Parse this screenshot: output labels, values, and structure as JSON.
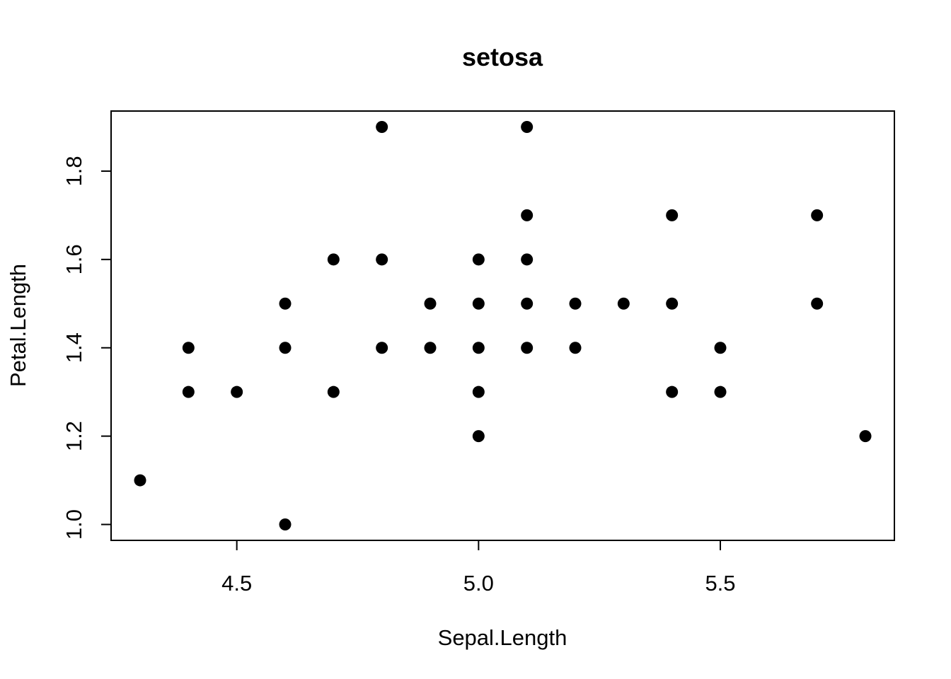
{
  "chart_data": {
    "type": "scatter",
    "title": "setosa",
    "xlabel": "Sepal.Length",
    "ylabel": "Petal.Length",
    "xlim": [
      4.24,
      5.86
    ],
    "ylim": [
      0.964,
      1.936
    ],
    "x_ticks": [
      "4.5",
      "5.0",
      "5.5"
    ],
    "y_ticks": [
      "1.0",
      "1.2",
      "1.4",
      "1.6",
      "1.8"
    ],
    "point_color": "#000000",
    "series": [
      {
        "points": [
          {
            "x": 4.3,
            "y": 1.1
          },
          {
            "x": 4.4,
            "y": 1.3
          },
          {
            "x": 4.4,
            "y": 1.4
          },
          {
            "x": 4.5,
            "y": 1.3
          },
          {
            "x": 4.6,
            "y": 1.0
          },
          {
            "x": 4.6,
            "y": 1.4
          },
          {
            "x": 4.6,
            "y": 1.5
          },
          {
            "x": 4.7,
            "y": 1.3
          },
          {
            "x": 4.7,
            "y": 1.6
          },
          {
            "x": 4.8,
            "y": 1.4
          },
          {
            "x": 4.8,
            "y": 1.6
          },
          {
            "x": 4.8,
            "y": 1.9
          },
          {
            "x": 4.9,
            "y": 1.4
          },
          {
            "x": 4.9,
            "y": 1.5
          },
          {
            "x": 5.0,
            "y": 1.2
          },
          {
            "x": 5.0,
            "y": 1.3
          },
          {
            "x": 5.0,
            "y": 1.4
          },
          {
            "x": 5.0,
            "y": 1.5
          },
          {
            "x": 5.0,
            "y": 1.6
          },
          {
            "x": 5.1,
            "y": 1.4
          },
          {
            "x": 5.1,
            "y": 1.5
          },
          {
            "x": 5.1,
            "y": 1.6
          },
          {
            "x": 5.1,
            "y": 1.7
          },
          {
            "x": 5.1,
            "y": 1.9
          },
          {
            "x": 5.2,
            "y": 1.4
          },
          {
            "x": 5.2,
            "y": 1.5
          },
          {
            "x": 5.3,
            "y": 1.5
          },
          {
            "x": 5.4,
            "y": 1.3
          },
          {
            "x": 5.4,
            "y": 1.5
          },
          {
            "x": 5.4,
            "y": 1.7
          },
          {
            "x": 5.5,
            "y": 1.3
          },
          {
            "x": 5.5,
            "y": 1.4
          },
          {
            "x": 5.7,
            "y": 1.5
          },
          {
            "x": 5.7,
            "y": 1.7
          },
          {
            "x": 5.8,
            "y": 1.2
          }
        ]
      }
    ],
    "grid": false,
    "legend": "none"
  }
}
